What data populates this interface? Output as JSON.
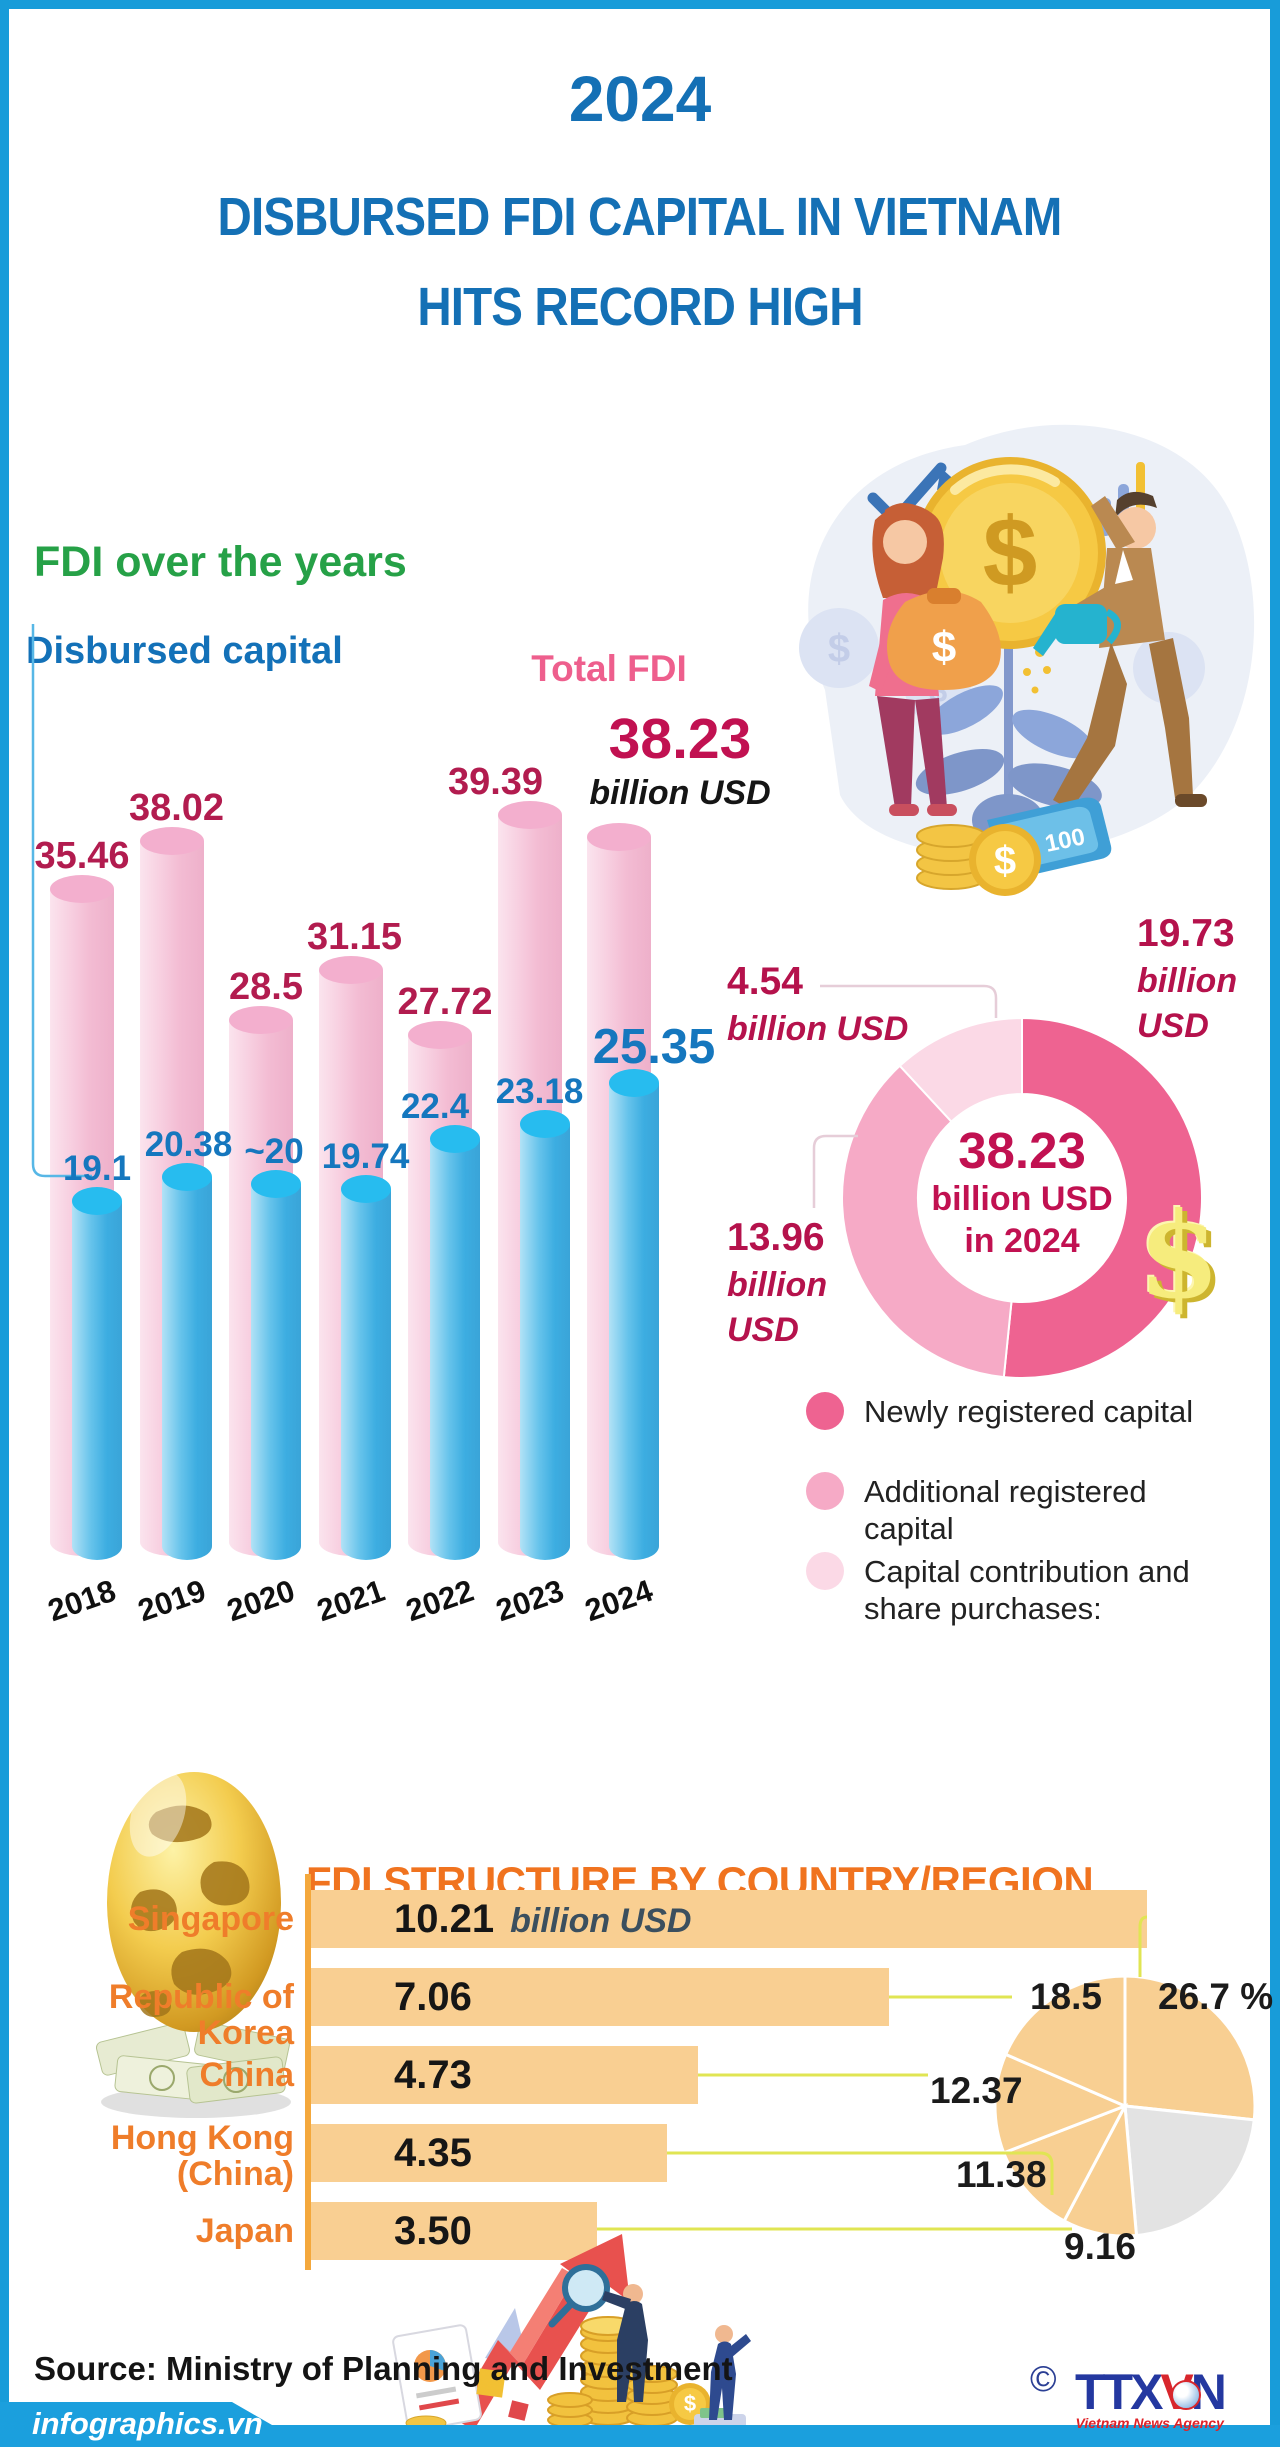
{
  "colors": {
    "accent_border": "#189cd9",
    "header_blue": "#1470b5",
    "green": "#26a147",
    "blue_label": "#1577be",
    "crimson": "#b5124c",
    "pink": "#ee5f8d",
    "donut_newly": "#ee6391",
    "donut_additional": "#f6aac6",
    "donut_contribution": "#fbd9e6",
    "orange_title": "#f0731f",
    "orange_label": "#ef7d2a",
    "bar_orange": "#f9cf92",
    "pie_gray": "#e3e3e3",
    "leader_yellow": "#e0e553",
    "gold": "#f6ec7d"
  },
  "header": {
    "year": "2024",
    "title_line1": "DISBURSED FDI CAPITAL IN VIETNAM",
    "title_line2": "HITS RECORD HIGH"
  },
  "years_section": {
    "title": "FDI over the years",
    "legend_disbursed": "Disbursed capital",
    "legend_total": "Total FDI",
    "total_headline_value": "38.23",
    "total_headline_unit": "billion USD",
    "disbursed_headline_value": "25.35"
  },
  "donut_section": {
    "newly": {
      "value": "19.73",
      "unit_line1": "billion",
      "unit_line2": "USD"
    },
    "additional": {
      "value": "13.96",
      "unit_line1": "billion",
      "unit_line2": "USD"
    },
    "contribution": {
      "value": "4.54",
      "unit": "billion USD"
    },
    "center_line1": "38.23",
    "center_line2": "billion USD",
    "center_line3": "in 2024",
    "dollar_glyph": "$"
  },
  "structure_section": {
    "title": "FDI STRUCTURE BY COUNTRY/REGION",
    "singapore_unit": "billion USD"
  },
  "footer": {
    "source": "Source: Ministry of Planning and Investment",
    "site": "infographics.vn",
    "copyright": "©",
    "agency": "TTXVN",
    "agency_v": "V",
    "agency_caption": "Vietnam News Agency"
  },
  "icons": {
    "coin_dollar": "$",
    "bag_dollar": "$",
    "bill_hundred": "100",
    "stack_dollar": "$"
  },
  "chart_data": [
    {
      "type": "bar",
      "title": "FDI over the years",
      "categories": [
        "2018",
        "2019",
        "2020",
        "2021",
        "2022",
        "2023",
        "2024"
      ],
      "series": [
        {
          "name": "Total FDI",
          "values": [
            35.46,
            38.02,
            28.5,
            31.15,
            27.72,
            39.39,
            38.23
          ],
          "labels": [
            "35.46",
            "38.02",
            "28.5",
            "31.15",
            "27.72",
            "39.39",
            "38.23"
          ]
        },
        {
          "name": "Disbursed capital",
          "values": [
            19.1,
            20.38,
            20,
            19.74,
            22.4,
            23.18,
            25.35
          ],
          "labels": [
            "19.1",
            "20.38",
            "~20",
            "19.74",
            "22.4",
            "23.18",
            "25.35"
          ]
        }
      ],
      "unit": "billion USD",
      "ylim": [
        0,
        42
      ],
      "grid": false
    },
    {
      "type": "pie",
      "subtype": "donut",
      "title": "38.23 billion USD in 2024",
      "slices": [
        {
          "label": "Newly registered capital",
          "value": 19.73,
          "color": "#ee6391"
        },
        {
          "label": "Additional registered capital",
          "value": 13.96,
          "color": "#f6aac6"
        },
        {
          "label": "Capital contribution and share purchases:",
          "value": 4.54,
          "color": "#fbd9e6"
        }
      ],
      "unit": "billion USD",
      "legend_position": "bottom-right"
    },
    {
      "type": "bar",
      "orientation": "horizontal",
      "title": "FDI STRUCTURE BY COUNTRY/REGION",
      "categories": [
        "Singapore",
        "Republic of Korea",
        "China",
        "Hong Kong (China)",
        "Japan"
      ],
      "category_lines": [
        [
          "Singapore"
        ],
        [
          "Republic of Korea"
        ],
        [
          "China"
        ],
        [
          "Hong Kong",
          "(China)"
        ],
        [
          "Japan"
        ]
      ],
      "values": [
        10.21,
        7.06,
        4.73,
        4.35,
        3.5
      ],
      "value_labels": [
        "10.21",
        "7.06",
        "4.73",
        "4.35",
        "3.50"
      ],
      "unit": "billion USD",
      "percent_labels": [
        "26.7 %",
        "18.5",
        "12.37",
        "11.38",
        "9.16"
      ],
      "percent_values": [
        26.7,
        18.5,
        12.37,
        11.38,
        9.16
      ],
      "pie_other_percent": 21.89
    }
  ]
}
